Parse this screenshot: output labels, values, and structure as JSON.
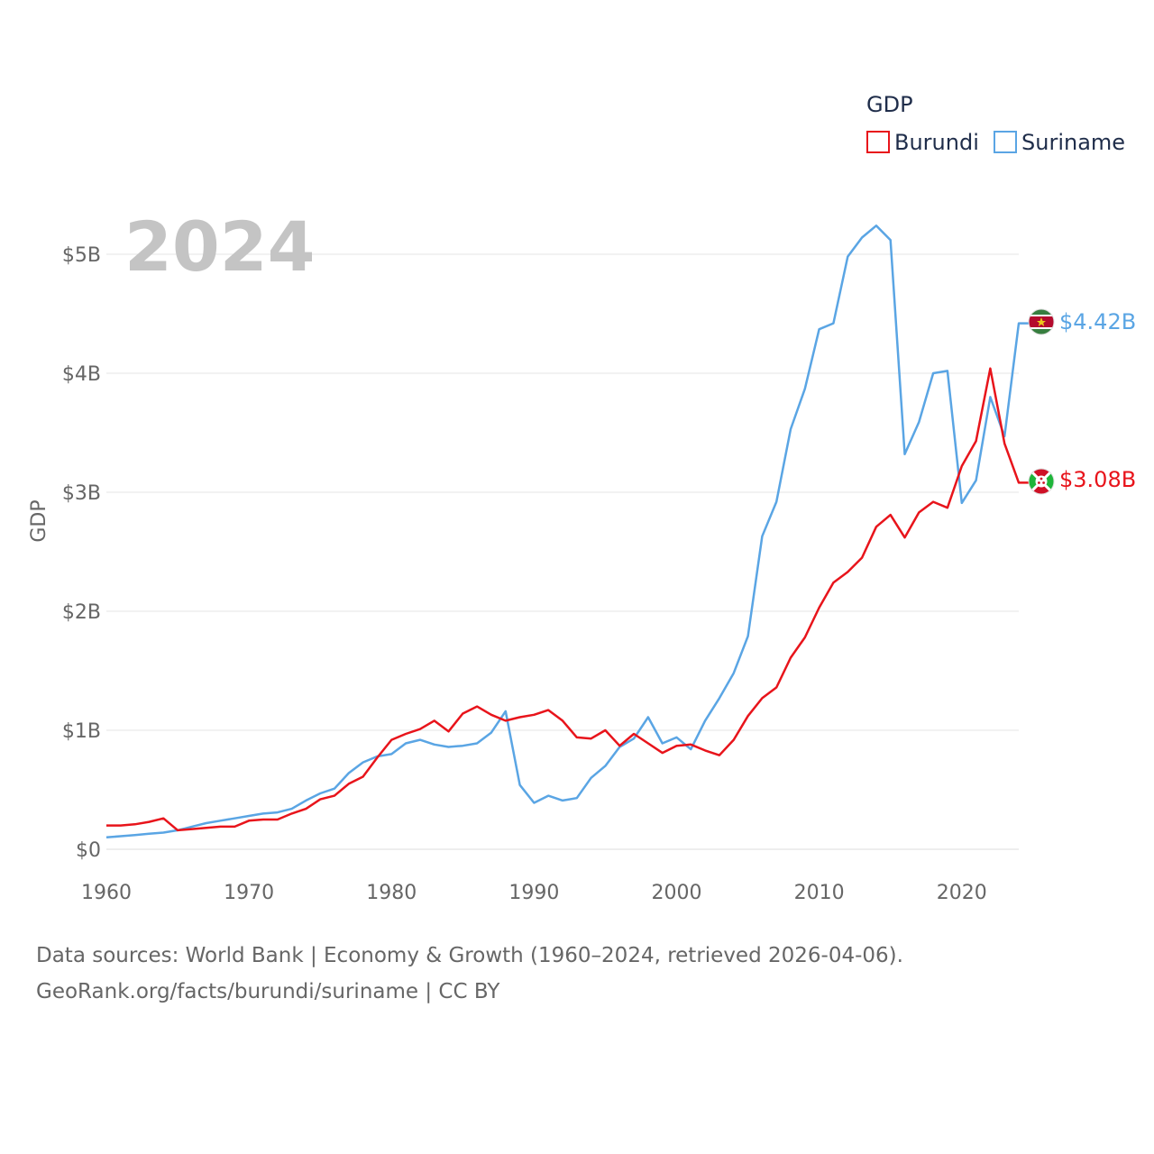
{
  "chart_data": {
    "type": "line",
    "title": "2024",
    "xlabel": "",
    "ylabel": "GDP",
    "xlim": [
      1960,
      2024
    ],
    "ylim": [
      0,
      5
    ],
    "y_unit": "billions USD",
    "x_ticks": [
      1960,
      1970,
      1980,
      1990,
      2000,
      2010,
      2020
    ],
    "y_ticks": [
      {
        "value": 0,
        "label": "$0"
      },
      {
        "value": 1,
        "label": "$1B"
      },
      {
        "value": 2,
        "label": "$2B"
      },
      {
        "value": 3,
        "label": "$3B"
      },
      {
        "value": 4,
        "label": "$4B"
      },
      {
        "value": 5,
        "label": "$5B"
      }
    ],
    "grid": true,
    "legend": {
      "title": "GDP",
      "position": "top-right"
    },
    "x": [
      1960,
      1961,
      1962,
      1963,
      1964,
      1965,
      1966,
      1967,
      1968,
      1969,
      1970,
      1971,
      1972,
      1973,
      1974,
      1975,
      1976,
      1977,
      1978,
      1979,
      1980,
      1981,
      1982,
      1983,
      1984,
      1985,
      1986,
      1987,
      1988,
      1989,
      1990,
      1991,
      1992,
      1993,
      1994,
      1995,
      1996,
      1997,
      1998,
      1999,
      2000,
      2001,
      2002,
      2003,
      2004,
      2005,
      2006,
      2007,
      2008,
      2009,
      2010,
      2011,
      2012,
      2013,
      2014,
      2015,
      2016,
      2017,
      2018,
      2019,
      2020,
      2021,
      2022,
      2023,
      2024
    ],
    "series": [
      {
        "name": "Burundi",
        "color": "#e8141b",
        "end_label": "$3.08B",
        "values": [
          0.2,
          0.2,
          0.21,
          0.23,
          0.26,
          0.16,
          0.17,
          0.18,
          0.19,
          0.19,
          0.24,
          0.25,
          0.25,
          0.3,
          0.34,
          0.42,
          0.45,
          0.55,
          0.61,
          0.77,
          0.92,
          0.97,
          1.01,
          1.08,
          0.99,
          1.14,
          1.2,
          1.13,
          1.08,
          1.11,
          1.13,
          1.17,
          1.08,
          0.94,
          0.93,
          1.0,
          0.87,
          0.97,
          0.89,
          0.81,
          0.87,
          0.88,
          0.83,
          0.79,
          0.92,
          1.12,
          1.27,
          1.36,
          1.61,
          1.78,
          2.03,
          2.24,
          2.33,
          2.45,
          2.71,
          2.81,
          2.62,
          2.83,
          2.92,
          2.87,
          3.22,
          3.43,
          4.04,
          3.41,
          3.08
        ]
      },
      {
        "name": "Suriname",
        "color": "#5aa5e4",
        "end_label": "$4.42B",
        "values": [
          0.1,
          0.11,
          0.12,
          0.13,
          0.14,
          0.16,
          0.19,
          0.22,
          0.24,
          0.26,
          0.28,
          0.3,
          0.31,
          0.34,
          0.41,
          0.47,
          0.51,
          0.64,
          0.73,
          0.78,
          0.8,
          0.89,
          0.92,
          0.88,
          0.86,
          0.87,
          0.89,
          0.98,
          1.16,
          0.54,
          0.39,
          0.45,
          0.41,
          0.43,
          0.6,
          0.7,
          0.86,
          0.93,
          1.11,
          0.89,
          0.94,
          0.84,
          1.08,
          1.27,
          1.48,
          1.79,
          2.63,
          2.92,
          3.53,
          3.87,
          4.37,
          4.42,
          4.98,
          5.14,
          5.24,
          5.12,
          3.32,
          3.59,
          4.0,
          4.02,
          2.91,
          3.1,
          3.8,
          3.47,
          4.42
        ]
      }
    ]
  },
  "footer": {
    "line1": "Data sources: World Bank | Economy & Growth (1960–2024, retrieved 2026-04-06).",
    "line2": "GeoRank.org/facts/burundi/suriname | CC BY"
  }
}
